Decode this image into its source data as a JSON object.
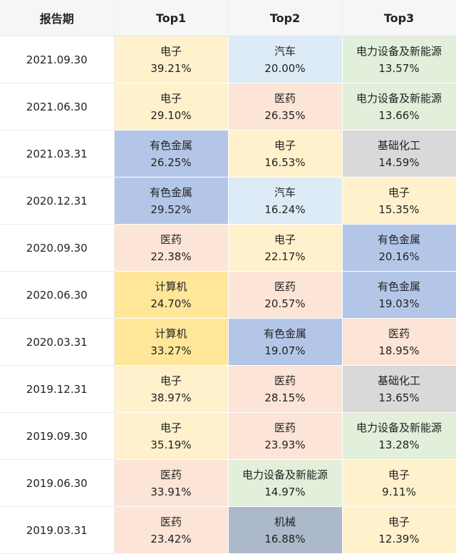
{
  "headers": [
    "报告期",
    "Top1",
    "Top2",
    "Top3"
  ],
  "sector_colors": {
    "电子": "#fff1cc",
    "汽车": "#ddebf7",
    "电力设备及新能源": "#e2efda",
    "医药": "#fce4d6",
    "有色金属": "#b4c6e7",
    "基础化工": "#d9d9d9",
    "计算机": "#ffe699",
    "机械": "#acb9ca"
  },
  "rows": [
    {
      "date": "2021.09.30",
      "items": [
        {
          "industry": "电子",
          "pct": "39.21%"
        },
        {
          "industry": "汽车",
          "pct": "20.00%"
        },
        {
          "industry": "电力设备及新能源",
          "pct": "13.57%"
        }
      ]
    },
    {
      "date": "2021.06.30",
      "items": [
        {
          "industry": "电子",
          "pct": "29.10%"
        },
        {
          "industry": "医药",
          "pct": "26.35%"
        },
        {
          "industry": "电力设备及新能源",
          "pct": "13.66%"
        }
      ]
    },
    {
      "date": "2021.03.31",
      "items": [
        {
          "industry": "有色金属",
          "pct": "26.25%"
        },
        {
          "industry": "电子",
          "pct": "16.53%"
        },
        {
          "industry": "基础化工",
          "pct": "14.59%"
        }
      ]
    },
    {
      "date": "2020.12.31",
      "items": [
        {
          "industry": "有色金属",
          "pct": "29.52%"
        },
        {
          "industry": "汽车",
          "pct": "16.24%"
        },
        {
          "industry": "电子",
          "pct": "15.35%"
        }
      ]
    },
    {
      "date": "2020.09.30",
      "items": [
        {
          "industry": "医药",
          "pct": "22.38%"
        },
        {
          "industry": "电子",
          "pct": "22.17%"
        },
        {
          "industry": "有色金属",
          "pct": "20.16%"
        }
      ]
    },
    {
      "date": "2020.06.30",
      "items": [
        {
          "industry": "计算机",
          "pct": "24.70%"
        },
        {
          "industry": "医药",
          "pct": "20.57%"
        },
        {
          "industry": "有色金属",
          "pct": "19.03%"
        }
      ]
    },
    {
      "date": "2020.03.31",
      "items": [
        {
          "industry": "计算机",
          "pct": "33.27%"
        },
        {
          "industry": "有色金属",
          "pct": "19.07%"
        },
        {
          "industry": "医药",
          "pct": "18.95%"
        }
      ]
    },
    {
      "date": "2019.12.31",
      "items": [
        {
          "industry": "电子",
          "pct": "38.97%"
        },
        {
          "industry": "医药",
          "pct": "28.15%"
        },
        {
          "industry": "基础化工",
          "pct": "13.65%"
        }
      ]
    },
    {
      "date": "2019.09.30",
      "items": [
        {
          "industry": "电子",
          "pct": "35.19%"
        },
        {
          "industry": "医药",
          "pct": "23.93%"
        },
        {
          "industry": "电力设备及新能源",
          "pct": "13.28%"
        }
      ]
    },
    {
      "date": "2019.06.30",
      "items": [
        {
          "industry": "医药",
          "pct": "33.91%"
        },
        {
          "industry": "电力设备及新能源",
          "pct": "14.97%"
        },
        {
          "industry": "电子",
          "pct": "9.11%"
        }
      ]
    },
    {
      "date": "2019.03.31",
      "items": [
        {
          "industry": "医药",
          "pct": "23.42%"
        },
        {
          "industry": "机械",
          "pct": "16.88%"
        },
        {
          "industry": "电子",
          "pct": "12.39%"
        }
      ]
    }
  ]
}
